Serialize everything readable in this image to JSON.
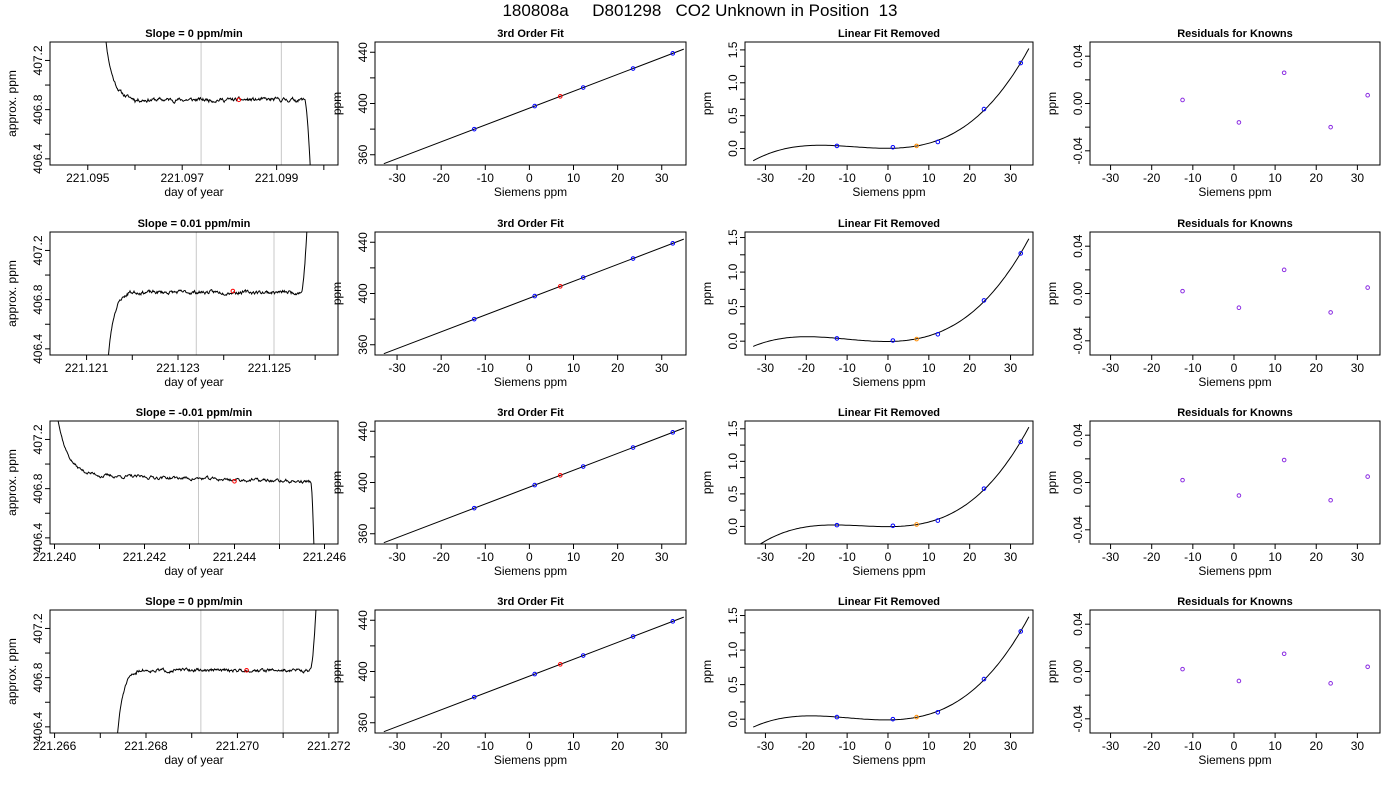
{
  "page": {
    "title": "180808a     D801298   CO2 Unknown in Position  13"
  },
  "colors": {
    "known_point": "#0000ff",
    "unknown_point": "#ff0000",
    "unknown_point_lin": "#ff8c00",
    "residual_point": "#8a2be2",
    "window_line": "#c8c8c8",
    "curve": "#000000"
  },
  "chart_data": [
    {
      "type": "line",
      "kind": "trace",
      "row": 0,
      "title": "Slope =  0  ppm/min",
      "xlabel": "day of year",
      "ylabel": "approx. ppm",
      "xlim": [
        221.0942,
        221.1003
      ],
      "ylim": [
        406.35,
        407.35
      ],
      "xticks": [
        221.095,
        221.096,
        221.097,
        221.098,
        221.099,
        221.1
      ],
      "xtick_labels": [
        "221.095",
        "",
        "221.097",
        "",
        "221.099",
        ""
      ],
      "yticks": [
        406.4,
        406.6,
        406.8,
        407.0,
        407.2
      ],
      "ytick_labels": [
        "406.4",
        "",
        "406.8",
        "",
        "407.2"
      ],
      "window": [
        221.0974,
        221.0991
      ],
      "marker": {
        "x": 221.0982,
        "y": 406.88
      },
      "baseline": 406.88,
      "noise": 0.012,
      "start": {
        "shape": "decay",
        "x0": 221.0953,
        "x1": 221.096,
        "y0": 407.7
      },
      "end": {
        "shape": "drop",
        "x0": 221.0996,
        "x1": 221.0998,
        "y1": 405.5
      },
      "seed": 11
    },
    {
      "type": "line",
      "kind": "calib",
      "row": 0,
      "title": "3rd Order Fit",
      "xlabel": "Siemens ppm",
      "ylabel": "ppm",
      "xlim": [
        -35,
        35.5
      ],
      "ylim": [
        352,
        448
      ],
      "xticks": [
        -30,
        -20,
        -10,
        0,
        10,
        20,
        30
      ],
      "yticks": [
        360,
        380,
        400,
        420,
        440
      ],
      "ytick_labels": [
        "360",
        "",
        "400",
        "",
        "440"
      ],
      "fit_line": {
        "x0": -33,
        "x1": 35,
        "intercept": 396.4,
        "slope": 1.315
      },
      "knowns_x": [
        -12.5,
        1.2,
        12.2,
        23.5,
        32.5
      ],
      "unknown_x": 7.0
    },
    {
      "type": "line",
      "kind": "linfit",
      "row": 0,
      "title": "Linear Fit Removed",
      "xlabel": "Siemens ppm",
      "ylabel": "ppm",
      "xlim": [
        -35,
        35.5
      ],
      "ylim": [
        -0.25,
        1.62
      ],
      "xticks": [
        -30,
        -20,
        -10,
        0,
        10,
        20,
        30
      ],
      "yticks": [
        0.0,
        0.5,
        1.0,
        1.5
      ],
      "ytick_labels": [
        "0.0",
        "0.5",
        "1.0",
        "1.5"
      ],
      "yminor": [
        0.25,
        0.75,
        1.25
      ],
      "curve": {
        "x0": -33,
        "x1": 34.5,
        "k": 6e-05,
        "m": -0.0003,
        "c": 0.01
      },
      "knowns": [
        {
          "x": -12.5,
          "y": 0.04
        },
        {
          "x": 1.2,
          "y": 0.02
        },
        {
          "x": 12.2,
          "y": 0.1
        },
        {
          "x": 23.5,
          "y": 0.6
        },
        {
          "x": 32.5,
          "y": 1.3
        }
      ],
      "unknown": {
        "x": 7.0,
        "y": 0.04
      }
    },
    {
      "type": "scatter",
      "kind": "resid",
      "row": 0,
      "title": "Residuals for Knowns",
      "xlabel": "Siemens ppm",
      "ylabel": "ppm",
      "xlim": [
        -35,
        35.5
      ],
      "ylim": [
        -0.052,
        0.052
      ],
      "xticks": [
        -30,
        -20,
        -10,
        0,
        10,
        20,
        30
      ],
      "yticks": [
        -0.04,
        0.0,
        0.04
      ],
      "ytick_labels": [
        "-0.04",
        "0.00",
        "0.04"
      ],
      "yminor": [
        -0.02,
        0.02
      ],
      "points": [
        {
          "x": -12.5,
          "y": 0.003
        },
        {
          "x": 1.2,
          "y": -0.016
        },
        {
          "x": 12.2,
          "y": 0.026
        },
        {
          "x": 23.5,
          "y": -0.02
        },
        {
          "x": 32.5,
          "y": 0.007
        }
      ]
    },
    {
      "type": "line",
      "kind": "trace",
      "row": 1,
      "title": "Slope =  0.01  ppm/min",
      "xlabel": "day of year",
      "ylabel": "approx. ppm",
      "xlim": [
        221.1202,
        221.1265
      ],
      "ylim": [
        406.35,
        407.35
      ],
      "xticks": [
        221.121,
        221.122,
        221.123,
        221.124,
        221.125,
        221.126
      ],
      "xtick_labels": [
        "221.121",
        "",
        "221.123",
        "",
        "221.125",
        ""
      ],
      "yticks": [
        406.4,
        406.6,
        406.8,
        407.0,
        407.2
      ],
      "ytick_labels": [
        "406.4",
        "",
        "406.8",
        "",
        "407.2"
      ],
      "window": [
        221.1234,
        221.1251
      ],
      "marker": {
        "x": 221.1242,
        "y": 406.87
      },
      "baseline": 406.86,
      "noise": 0.011,
      "start": {
        "shape": "rise",
        "x0": 221.1214,
        "x1": 221.1219,
        "y0": 405.9
      },
      "end": {
        "shape": "spike",
        "x0": 221.1257,
        "x1": 221.1259,
        "y1": 408.0
      },
      "seed": 23
    },
    {
      "type": "line",
      "kind": "calib",
      "row": 1,
      "title": "3rd Order Fit",
      "xlabel": "Siemens ppm",
      "ylabel": "ppm",
      "xlim": [
        -35,
        35.5
      ],
      "ylim": [
        352,
        448
      ],
      "xticks": [
        -30,
        -20,
        -10,
        0,
        10,
        20,
        30
      ],
      "yticks": [
        360,
        380,
        400,
        420,
        440
      ],
      "ytick_labels": [
        "360",
        "",
        "400",
        "",
        "440"
      ],
      "fit_line": {
        "x0": -33,
        "x1": 35,
        "intercept": 396.4,
        "slope": 1.315
      },
      "knowns_x": [
        -12.5,
        1.2,
        12.2,
        23.5,
        32.5
      ],
      "unknown_x": 7.0
    },
    {
      "type": "line",
      "kind": "linfit",
      "row": 1,
      "title": "Linear Fit Removed",
      "xlabel": "Siemens ppm",
      "ylabel": "ppm",
      "xlim": [
        -35,
        35.5
      ],
      "ylim": [
        -0.2,
        1.58
      ],
      "xticks": [
        -30,
        -20,
        -10,
        0,
        10,
        20,
        30
      ],
      "yticks": [
        0.0,
        0.5,
        1.0,
        1.5
      ],
      "ytick_labels": [
        "0.0",
        "0.5",
        "1.0",
        "1.5"
      ],
      "yminor": [
        0.25,
        0.75,
        1.25
      ],
      "curve": {
        "x0": -33,
        "x1": 34.5,
        "k": 6e-05,
        "m": -0.0003,
        "c": 0.01
      },
      "knowns": [
        {
          "x": -12.5,
          "y": 0.04
        },
        {
          "x": 1.2,
          "y": 0.01
        },
        {
          "x": 12.2,
          "y": 0.1
        },
        {
          "x": 23.5,
          "y": 0.59
        },
        {
          "x": 32.5,
          "y": 1.27
        }
      ],
      "unknown": {
        "x": 7.0,
        "y": 0.03
      }
    },
    {
      "type": "scatter",
      "kind": "resid",
      "row": 1,
      "title": "Residuals for Knowns",
      "xlabel": "Siemens ppm",
      "ylabel": "ppm",
      "xlim": [
        -35,
        35.5
      ],
      "ylim": [
        -0.052,
        0.052
      ],
      "xticks": [
        -30,
        -20,
        -10,
        0,
        10,
        20,
        30
      ],
      "yticks": [
        -0.04,
        0.0,
        0.04
      ],
      "ytick_labels": [
        "-0.04",
        "0.00",
        "0.04"
      ],
      "yminor": [
        -0.02,
        0.02
      ],
      "points": [
        {
          "x": -12.5,
          "y": 0.002
        },
        {
          "x": 1.2,
          "y": -0.012
        },
        {
          "x": 12.2,
          "y": 0.02
        },
        {
          "x": 23.5,
          "y": -0.016
        },
        {
          "x": 32.5,
          "y": 0.005
        }
      ]
    },
    {
      "type": "line",
      "kind": "trace",
      "row": 2,
      "title": "Slope =  -0.01  ppm/min",
      "xlabel": "day of year",
      "ylabel": "approx. ppm",
      "xlim": [
        221.2399,
        221.2463
      ],
      "ylim": [
        406.35,
        407.35
      ],
      "xticks": [
        221.24,
        221.241,
        221.242,
        221.243,
        221.244,
        221.245,
        221.246
      ],
      "xtick_labels": [
        "221.240",
        "",
        "221.242",
        "",
        "221.244",
        "",
        "221.246"
      ],
      "yticks": [
        406.4,
        406.6,
        406.8,
        407.0,
        407.2
      ],
      "ytick_labels": [
        "406.4",
        "",
        "406.8",
        "",
        "407.2"
      ],
      "window": [
        221.2432,
        221.245
      ],
      "marker": {
        "x": 221.244,
        "y": 406.86
      },
      "baseline": 406.88,
      "noise": 0.011,
      "start": {
        "shape": "decay",
        "x0": 221.24,
        "x1": 221.241,
        "y0": 407.55
      },
      "end": {
        "shape": "drop",
        "x0": 221.2457,
        "x1": 221.2458,
        "y1": 405.8
      },
      "slope_per_span": -0.05,
      "seed": 37
    },
    {
      "type": "line",
      "kind": "calib",
      "row": 2,
      "title": "3rd Order Fit",
      "xlabel": "Siemens ppm",
      "ylabel": "ppm",
      "xlim": [
        -35,
        35.5
      ],
      "ylim": [
        352,
        448
      ],
      "xticks": [
        -30,
        -20,
        -10,
        0,
        10,
        20,
        30
      ],
      "yticks": [
        360,
        380,
        400,
        420,
        440
      ],
      "ytick_labels": [
        "360",
        "",
        "400",
        "",
        "440"
      ],
      "fit_line": {
        "x0": -33,
        "x1": 35,
        "intercept": 396.4,
        "slope": 1.315
      },
      "knowns_x": [
        -12.5,
        1.2,
        12.2,
        23.5,
        32.5
      ],
      "unknown_x": 7.0
    },
    {
      "type": "line",
      "kind": "linfit",
      "row": 2,
      "title": "Linear Fit Removed",
      "xlabel": "Siemens ppm",
      "ylabel": "ppm",
      "xlim": [
        -35,
        35.5
      ],
      "ylim": [
        -0.27,
        1.62
      ],
      "xticks": [
        -30,
        -20,
        -10,
        0,
        10,
        20,
        30
      ],
      "yticks": [
        0.0,
        0.5,
        1.0,
        1.5
      ],
      "ytick_labels": [
        "0.0",
        "0.5",
        "1.0",
        "1.5"
      ],
      "yminor": [
        0.25,
        0.75,
        1.25
      ],
      "curve": {
        "x0": -33,
        "x1": 34.5,
        "k": 6e-05,
        "m": -0.0001,
        "c": 0.0
      },
      "knowns": [
        {
          "x": -12.5,
          "y": 0.02
        },
        {
          "x": 1.2,
          "y": 0.01
        },
        {
          "x": 12.2,
          "y": 0.09
        },
        {
          "x": 23.5,
          "y": 0.58
        },
        {
          "x": 32.5,
          "y": 1.3
        }
      ],
      "unknown": {
        "x": 7.0,
        "y": 0.03
      }
    },
    {
      "type": "scatter",
      "kind": "resid",
      "row": 2,
      "title": "Residuals for Knowns",
      "xlabel": "Siemens ppm",
      "ylabel": "ppm",
      "xlim": [
        -35,
        35.5
      ],
      "ylim": [
        -0.052,
        0.052
      ],
      "xticks": [
        -30,
        -20,
        -10,
        0,
        10,
        20,
        30
      ],
      "yticks": [
        -0.04,
        0.0,
        0.04
      ],
      "ytick_labels": [
        "-0.04",
        "0.00",
        "0.04"
      ],
      "yminor": [
        -0.02,
        0.02
      ],
      "points": [
        {
          "x": -12.5,
          "y": 0.002
        },
        {
          "x": 1.2,
          "y": -0.011
        },
        {
          "x": 12.2,
          "y": 0.019
        },
        {
          "x": 23.5,
          "y": -0.015
        },
        {
          "x": 32.5,
          "y": 0.005
        }
      ]
    },
    {
      "type": "line",
      "kind": "trace",
      "row": 3,
      "title": "Slope =  0  ppm/min",
      "xlabel": "day of year",
      "ylabel": "approx. ppm",
      "xlim": [
        221.2659,
        221.2722
      ],
      "ylim": [
        406.35,
        407.35
      ],
      "xticks": [
        221.266,
        221.267,
        221.268,
        221.269,
        221.27,
        221.271,
        221.272
      ],
      "xtick_labels": [
        "221.266",
        "",
        "221.268",
        "",
        "221.270",
        "",
        "221.272"
      ],
      "yticks": [
        406.4,
        406.6,
        406.8,
        407.0,
        407.2
      ],
      "ytick_labels": [
        "406.4",
        "",
        "406.8",
        "",
        "407.2"
      ],
      "window": [
        221.2692,
        221.271
      ],
      "marker": {
        "x": 221.2702,
        "y": 406.86
      },
      "baseline": 406.86,
      "noise": 0.01,
      "start": {
        "shape": "rise",
        "x0": 221.2673,
        "x1": 221.2678,
        "y0": 405.9
      },
      "end": {
        "shape": "spike",
        "x0": 221.2716,
        "x1": 221.2718,
        "y1": 408.0
      },
      "seed": 51
    },
    {
      "type": "line",
      "kind": "calib",
      "row": 3,
      "title": "3rd Order Fit",
      "xlabel": "Siemens ppm",
      "ylabel": "ppm",
      "xlim": [
        -35,
        35.5
      ],
      "ylim": [
        352,
        448
      ],
      "xticks": [
        -30,
        -20,
        -10,
        0,
        10,
        20,
        30
      ],
      "yticks": [
        360,
        380,
        400,
        420,
        440
      ],
      "ytick_labels": [
        "360",
        "",
        "400",
        "",
        "440"
      ],
      "fit_line": {
        "x0": -33,
        "x1": 35,
        "intercept": 396.4,
        "slope": 1.315
      },
      "knowns_x": [
        -12.5,
        1.2,
        12.2,
        23.5,
        32.5
      ],
      "unknown_x": 7.0
    },
    {
      "type": "line",
      "kind": "linfit",
      "row": 3,
      "title": "Linear Fit Removed",
      "xlabel": "Siemens ppm",
      "ylabel": "ppm",
      "xlim": [
        -35,
        35.5
      ],
      "ylim": [
        -0.2,
        1.58
      ],
      "xticks": [
        -30,
        -20,
        -10,
        0,
        10,
        20,
        30
      ],
      "yticks": [
        0.0,
        0.5,
        1.0,
        1.5
      ],
      "ytick_labels": [
        "0.0",
        "0.5",
        "1.0",
        "1.5"
      ],
      "yminor": [
        0.25,
        0.75,
        1.25
      ],
      "curve": {
        "x0": -33,
        "x1": 34.5,
        "k": 6e-05,
        "m": -0.0003,
        "c": 0.01
      },
      "knowns": [
        {
          "x": -12.5,
          "y": 0.03
        },
        {
          "x": 1.2,
          "y": 0.0
        },
        {
          "x": 12.2,
          "y": 0.1
        },
        {
          "x": 23.5,
          "y": 0.58
        },
        {
          "x": 32.5,
          "y": 1.27
        }
      ],
      "unknown": {
        "x": 7.0,
        "y": 0.03
      }
    },
    {
      "type": "scatter",
      "kind": "resid",
      "row": 3,
      "title": "Residuals for Knowns",
      "xlabel": "Siemens ppm",
      "ylabel": "ppm",
      "xlim": [
        -35,
        35.5
      ],
      "ylim": [
        -0.052,
        0.052
      ],
      "xticks": [
        -30,
        -20,
        -10,
        0,
        10,
        20,
        30
      ],
      "yticks": [
        -0.04,
        0.0,
        0.04
      ],
      "ytick_labels": [
        "-0.04",
        "0.00",
        "0.04"
      ],
      "yminor": [
        -0.02,
        0.02
      ],
      "points": [
        {
          "x": -12.5,
          "y": 0.002
        },
        {
          "x": 1.2,
          "y": -0.008
        },
        {
          "x": 12.2,
          "y": 0.015
        },
        {
          "x": 23.5,
          "y": -0.01
        },
        {
          "x": 32.5,
          "y": 0.004
        }
      ]
    }
  ]
}
